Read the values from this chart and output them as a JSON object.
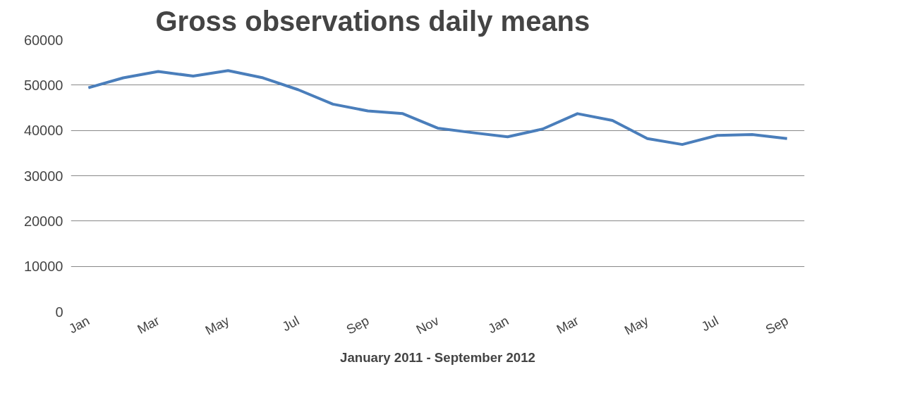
{
  "chart_data": {
    "type": "line",
    "title": "Gross observations daily means",
    "xlabel": "January 2011 - September 2012",
    "categories": [
      "Jan",
      null,
      "Mar",
      null,
      "May",
      null,
      "Jul",
      null,
      "Sep",
      null,
      "Nov",
      null,
      "Jan",
      null,
      "Mar",
      null,
      "May",
      null,
      "Jul",
      null,
      "Sep"
    ],
    "series": [
      {
        "color": "#4a7ebb",
        "values": [
          49400,
          51600,
          53000,
          52000,
          53200,
          51600,
          49000,
          45800,
          44300,
          43700,
          40500,
          39500,
          38600,
          40300,
          43700,
          42200,
          38200,
          36900,
          38900,
          39100,
          38200
        ]
      }
    ],
    "ylim": [
      0,
      60000
    ],
    "yticks": [
      0,
      10000,
      20000,
      30000,
      40000,
      50000,
      60000
    ],
    "grid": "y",
    "marker": "none",
    "line_style": "solid"
  }
}
